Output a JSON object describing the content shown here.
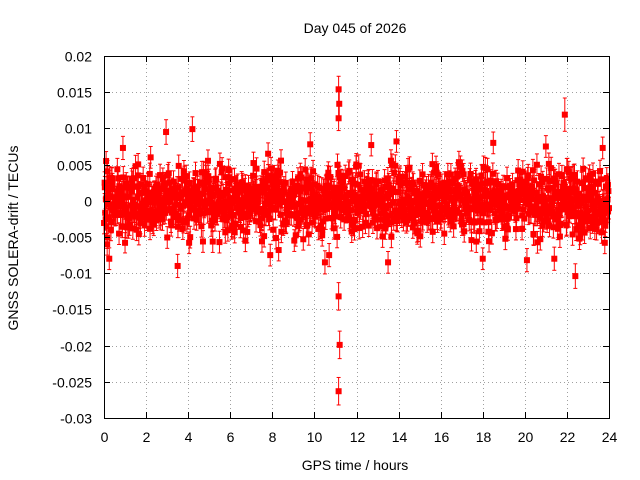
{
  "chart_data": {
    "type": "scatter",
    "title": "Day 045 of 2026",
    "xlabel": "GPS time / hours",
    "ylabel": "GNSS SOLERA-drift / TECUs",
    "xlim": [
      0,
      24
    ],
    "ylim": [
      -0.03,
      0.02
    ],
    "xticks": [
      0,
      2,
      4,
      6,
      8,
      10,
      12,
      14,
      16,
      18,
      20,
      22,
      24
    ],
    "xtick_labels": [
      "0",
      "2",
      "4",
      "6",
      "8",
      "10",
      "12",
      "14",
      "16",
      "18",
      "20",
      "22",
      "24"
    ],
    "yticks": [
      0.02,
      0.015,
      0.01,
      0.005,
      0,
      -0.005,
      -0.01,
      -0.015,
      -0.02,
      -0.025,
      -0.03
    ],
    "ytick_labels": [
      "0.02",
      "0.015",
      "0.01",
      "0.005",
      "0",
      "-0.005",
      "-0.01",
      "-0.015",
      "-0.02",
      "-0.025",
      "-0.03"
    ],
    "grid": true,
    "series_color": "#ff0000",
    "marker": "square",
    "error_bars": true,
    "typical_error": 0.0015,
    "dense_band": {
      "x_range": [
        0,
        24
      ],
      "y_range": [
        -0.006,
        0.006
      ],
      "description": "dense cluster of several thousand points around zero"
    },
    "notable_points": [
      {
        "x": 0.1,
        "y": 0.0055,
        "err": 0.0013
      },
      {
        "x": 0.15,
        "y": -0.006,
        "err": 0.0015
      },
      {
        "x": 0.25,
        "y": -0.008,
        "err": 0.0015
      },
      {
        "x": 0.9,
        "y": 0.0073,
        "err": 0.0016
      },
      {
        "x": 1.0,
        "y": -0.0058,
        "err": 0.0014
      },
      {
        "x": 2.95,
        "y": 0.0095,
        "err": 0.0017
      },
      {
        "x": 3.5,
        "y": -0.009,
        "err": 0.0016
      },
      {
        "x": 4.2,
        "y": 0.0099,
        "err": 0.0017
      },
      {
        "x": 7.8,
        "y": 0.0065,
        "err": 0.0015
      },
      {
        "x": 7.9,
        "y": -0.0075,
        "err": 0.0015
      },
      {
        "x": 8.3,
        "y": -0.0068,
        "err": 0.0015
      },
      {
        "x": 9.8,
        "y": 0.0078,
        "err": 0.0016
      },
      {
        "x": 10.5,
        "y": -0.0085,
        "err": 0.0016
      },
      {
        "x": 10.7,
        "y": -0.0075,
        "err": 0.0016
      },
      {
        "x": 11.15,
        "y": 0.0154,
        "err": 0.0018
      },
      {
        "x": 11.18,
        "y": 0.0134,
        "err": 0.0018
      },
      {
        "x": 11.15,
        "y": 0.0114,
        "err": 0.0017
      },
      {
        "x": 11.15,
        "y": -0.0132,
        "err": 0.0019
      },
      {
        "x": 11.2,
        "y": -0.0199,
        "err": 0.0019
      },
      {
        "x": 11.15,
        "y": -0.0263,
        "err": 0.0019
      },
      {
        "x": 12.7,
        "y": 0.0077,
        "err": 0.0015
      },
      {
        "x": 13.5,
        "y": -0.0085,
        "err": 0.0015
      },
      {
        "x": 13.9,
        "y": 0.0082,
        "err": 0.0015
      },
      {
        "x": 18.0,
        "y": -0.008,
        "err": 0.0015
      },
      {
        "x": 18.5,
        "y": 0.008,
        "err": 0.0015
      },
      {
        "x": 20.1,
        "y": -0.0082,
        "err": 0.0016
      },
      {
        "x": 21.0,
        "y": 0.0075,
        "err": 0.0015
      },
      {
        "x": 21.4,
        "y": -0.008,
        "err": 0.0016
      },
      {
        "x": 21.9,
        "y": 0.0119,
        "err": 0.0023
      },
      {
        "x": 22.4,
        "y": -0.0104,
        "err": 0.0017
      },
      {
        "x": 23.7,
        "y": 0.0073,
        "err": 0.0015
      },
      {
        "x": 23.8,
        "y": -0.0058,
        "err": 0.0015
      }
    ]
  }
}
